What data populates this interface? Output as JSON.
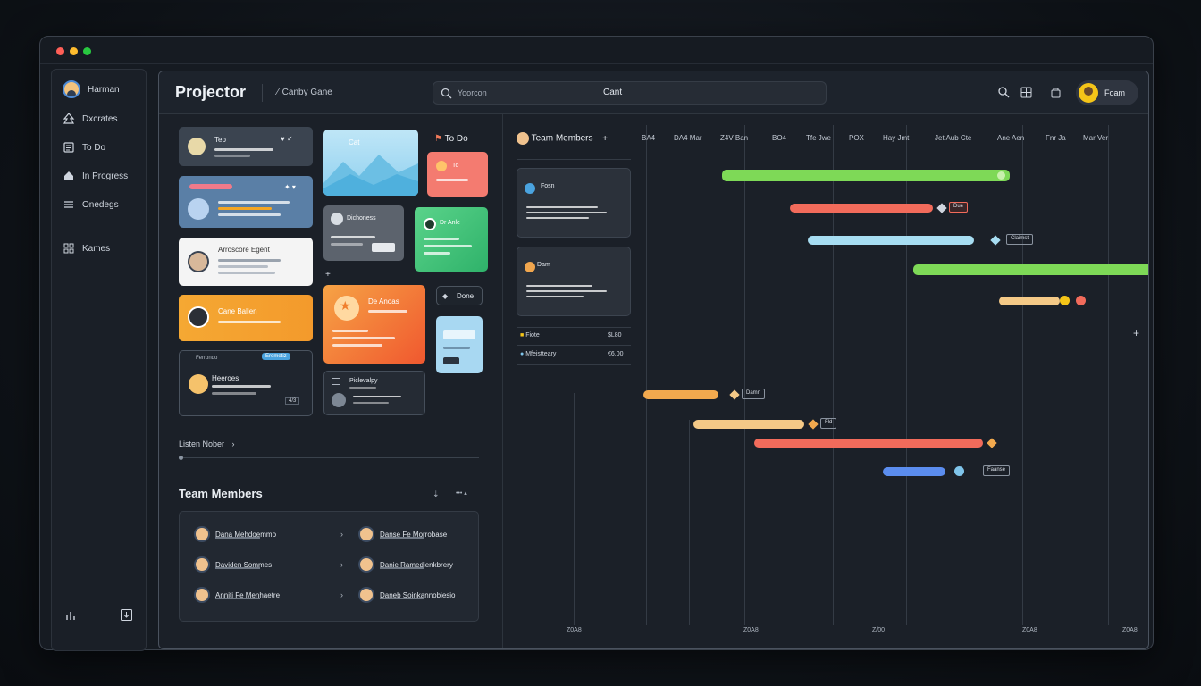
{
  "window": {
    "dot_colors": [
      "#ff5f57",
      "#febc2e",
      "#28c840"
    ]
  },
  "sidebar": {
    "user": "Harman",
    "items": [
      {
        "label": "Dxcrates",
        "icon": "tree-icon"
      },
      {
        "label": "To Do",
        "icon": "list-icon"
      },
      {
        "label": "In Progress",
        "icon": "home-icon"
      },
      {
        "label": "Onedegs",
        "icon": "menu-icon"
      },
      {
        "label": "Kames",
        "icon": "grid-icon"
      }
    ],
    "bottom_icons": [
      "chart-icon",
      "export-icon"
    ]
  },
  "topbar": {
    "title": "Projector",
    "breadcrumb": "Canby Gane",
    "search_placeholder": "Yoorcon",
    "search_center": "Cant",
    "user_label": "Foam"
  },
  "board": {
    "todo_label": "To Do",
    "done_label": "Done",
    "card_top_left": "Tep",
    "card_white_title": "Arroscore Egent",
    "card_orange_title": "Cane Ballen",
    "card_orange_big": "De Anoas",
    "card_gray_title": "Dichoness",
    "card_green_title": "Dr Anle",
    "card_dark1_title": "Heeroes",
    "card_dark1_pill": "Eremetiz",
    "card_dark1_left": "Ferrondo",
    "card_dark2_title": "Piclevalpy",
    "card_dark1_count": "4/3",
    "card_pink_label": "To",
    "sky_label": "Cat",
    "listen_label": "Listen Nober",
    "team_title": "Team Members",
    "team_members": [
      {
        "name": "Dana Mehdoemmo"
      },
      {
        "name": "Danse Fe Morrobase"
      },
      {
        "name": "Daviden Sommes"
      },
      {
        "name": "Danie Ramedienkbrery"
      },
      {
        "name": "Anniti Fe Menhaetre"
      },
      {
        "name": "Daneb Soinkannobiesio"
      }
    ]
  },
  "gantt": {
    "team_header": "Team Members",
    "panel1_title": "Fosn",
    "panel2_title": "Dam",
    "row1_label": "Fiote",
    "row1_value": "$L80",
    "row2_label": "Mfeistteary",
    "row2_value": "€6,00",
    "months": [
      "BA4",
      "DA4 Mar",
      "Z4V Ban",
      "BO4",
      "Tfe Jwe",
      "POX",
      "Hay Jmt",
      "Jet Aub Cte",
      "Ane Aen",
      "Fnr Ja",
      "Mar Ver"
    ],
    "tags": [
      "Due",
      "Claimst",
      "Damn",
      "Fld",
      "Faanse"
    ],
    "axis_labels": [
      "Z0A8",
      "Z0A8",
      "Z/00",
      "Z0A8",
      "Z0A8"
    ],
    "bar_colors": [
      "#7ed957",
      "#f26b5b",
      "#a7ddf2",
      "#f4c987",
      "#5b8def",
      "#f2a94e"
    ]
  }
}
